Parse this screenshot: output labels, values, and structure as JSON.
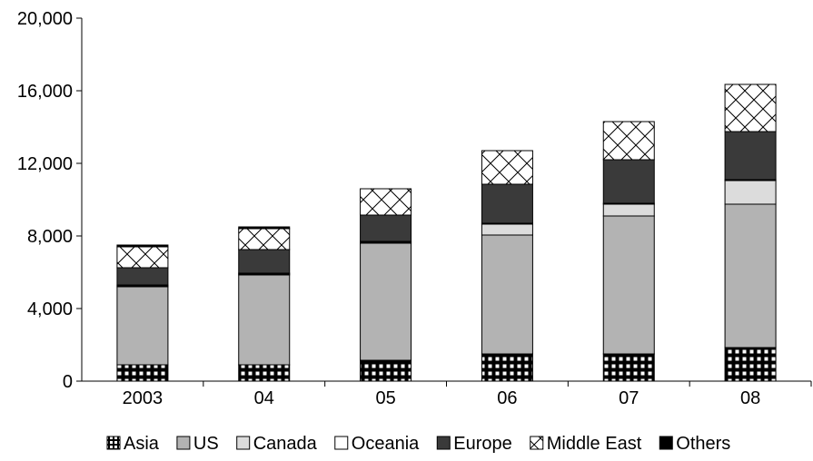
{
  "chart_data": {
    "type": "bar",
    "stacked": true,
    "title": "",
    "xlabel": "",
    "ylabel": "",
    "ylim": [
      0,
      20000
    ],
    "y_ticks": [
      "0",
      "4,000",
      "8,000",
      "12,000",
      "16,000",
      "20,000"
    ],
    "y_tick_values": [
      0,
      4000,
      8000,
      12000,
      16000,
      20000
    ],
    "categories": [
      "2003",
      "04",
      "05",
      "06",
      "07",
      "08"
    ],
    "grid": false,
    "legend_position": "bottom",
    "series": [
      {
        "name": "Asia",
        "key": "asia",
        "values": [
          900,
          900,
          1150,
          1500,
          1500,
          1850
        ]
      },
      {
        "name": "US",
        "key": "us",
        "values": [
          4300,
          4950,
          6450,
          6550,
          7600,
          7900
        ]
      },
      {
        "name": "Canada",
        "key": "canada",
        "values": [
          50,
          50,
          50,
          600,
          650,
          1300
        ]
      },
      {
        "name": "Oceania",
        "key": "oceania",
        "values": [
          50,
          50,
          50,
          50,
          50,
          50
        ]
      },
      {
        "name": "Europe",
        "key": "europe",
        "values": [
          950,
          1300,
          1450,
          2150,
          2400,
          2650
        ]
      },
      {
        "name": "Middle East",
        "key": "middle-east",
        "values": [
          1150,
          1150,
          1450,
          1850,
          2100,
          2600
        ]
      },
      {
        "name": "Others",
        "key": "others",
        "values": [
          100,
          100,
          0,
          0,
          0,
          0
        ]
      }
    ]
  }
}
